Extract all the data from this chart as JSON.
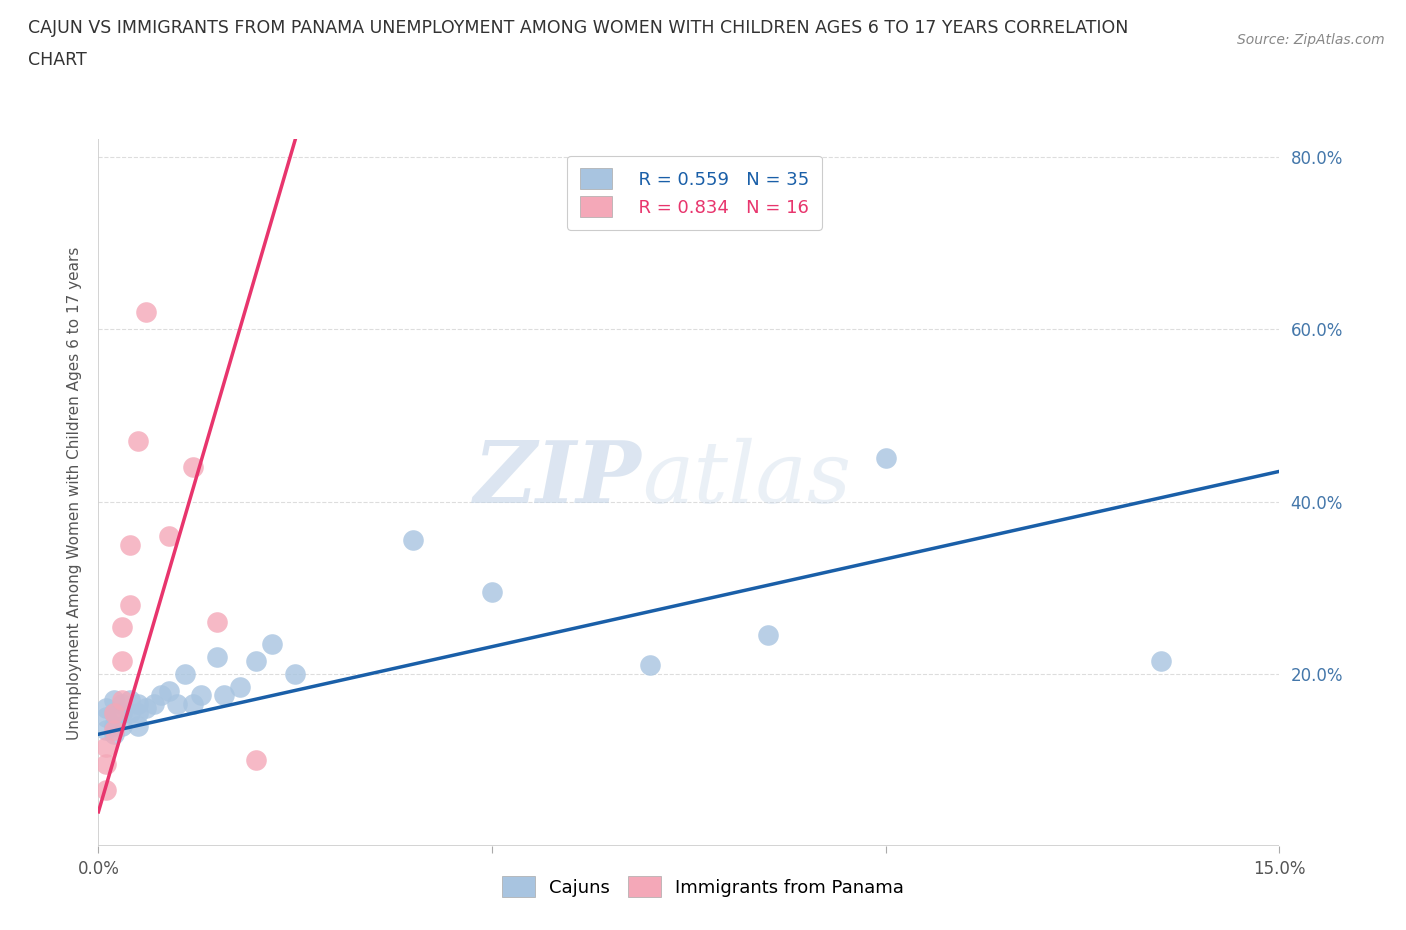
{
  "title_line1": "CAJUN VS IMMIGRANTS FROM PANAMA UNEMPLOYMENT AMONG WOMEN WITH CHILDREN AGES 6 TO 17 YEARS CORRELATION",
  "title_line2": "CHART",
  "source_text": "Source: ZipAtlas.com",
  "ylabel": "Unemployment Among Women with Children Ages 6 to 17 years",
  "xlim": [
    0.0,
    0.15
  ],
  "ylim": [
    0.0,
    0.82
  ],
  "xticks": [
    0.0,
    0.05,
    0.1,
    0.15
  ],
  "xtick_labels": [
    "0.0%",
    "",
    "",
    "15.0%"
  ],
  "yticks": [
    0.0,
    0.2,
    0.4,
    0.6,
    0.8
  ],
  "ytick_labels": [
    "",
    "20.0%",
    "40.0%",
    "60.0%",
    "80.0%"
  ],
  "cajun_color": "#a8c4e0",
  "panama_color": "#f4a8b8",
  "cajun_line_color": "#1a5fa8",
  "panama_line_color": "#e8356d",
  "legend_r_cajun": "R = 0.559",
  "legend_n_cajun": "N = 35",
  "legend_r_panama": "R = 0.834",
  "legend_n_panama": "N = 16",
  "watermark_zip": "ZIP",
  "watermark_atlas": "atlas",
  "cajun_scatter_x": [
    0.001,
    0.001,
    0.001,
    0.002,
    0.002,
    0.002,
    0.002,
    0.003,
    0.003,
    0.003,
    0.004,
    0.004,
    0.005,
    0.005,
    0.005,
    0.006,
    0.007,
    0.008,
    0.009,
    0.01,
    0.011,
    0.012,
    0.013,
    0.015,
    0.016,
    0.018,
    0.02,
    0.022,
    0.025,
    0.04,
    0.05,
    0.07,
    0.085,
    0.1,
    0.135
  ],
  "cajun_scatter_y": [
    0.135,
    0.15,
    0.16,
    0.13,
    0.14,
    0.155,
    0.17,
    0.14,
    0.155,
    0.165,
    0.155,
    0.17,
    0.14,
    0.155,
    0.165,
    0.16,
    0.165,
    0.175,
    0.18,
    0.165,
    0.2,
    0.165,
    0.175,
    0.22,
    0.175,
    0.185,
    0.215,
    0.235,
    0.2,
    0.355,
    0.295,
    0.21,
    0.245,
    0.45,
    0.215
  ],
  "panama_scatter_x": [
    0.001,
    0.001,
    0.001,
    0.002,
    0.002,
    0.003,
    0.003,
    0.003,
    0.004,
    0.004,
    0.005,
    0.006,
    0.009,
    0.012,
    0.015,
    0.02
  ],
  "panama_scatter_y": [
    0.065,
    0.095,
    0.115,
    0.135,
    0.155,
    0.17,
    0.215,
    0.255,
    0.28,
    0.35,
    0.47,
    0.62,
    0.36,
    0.44,
    0.26,
    0.1
  ],
  "cajun_trend_x": [
    0.0,
    0.15
  ],
  "cajun_trend_y": [
    0.13,
    0.435
  ],
  "panama_trend_x": [
    0.0,
    0.025
  ],
  "panama_trend_y": [
    0.04,
    0.82
  ],
  "background_color": "#ffffff",
  "grid_color": "#dddddd"
}
